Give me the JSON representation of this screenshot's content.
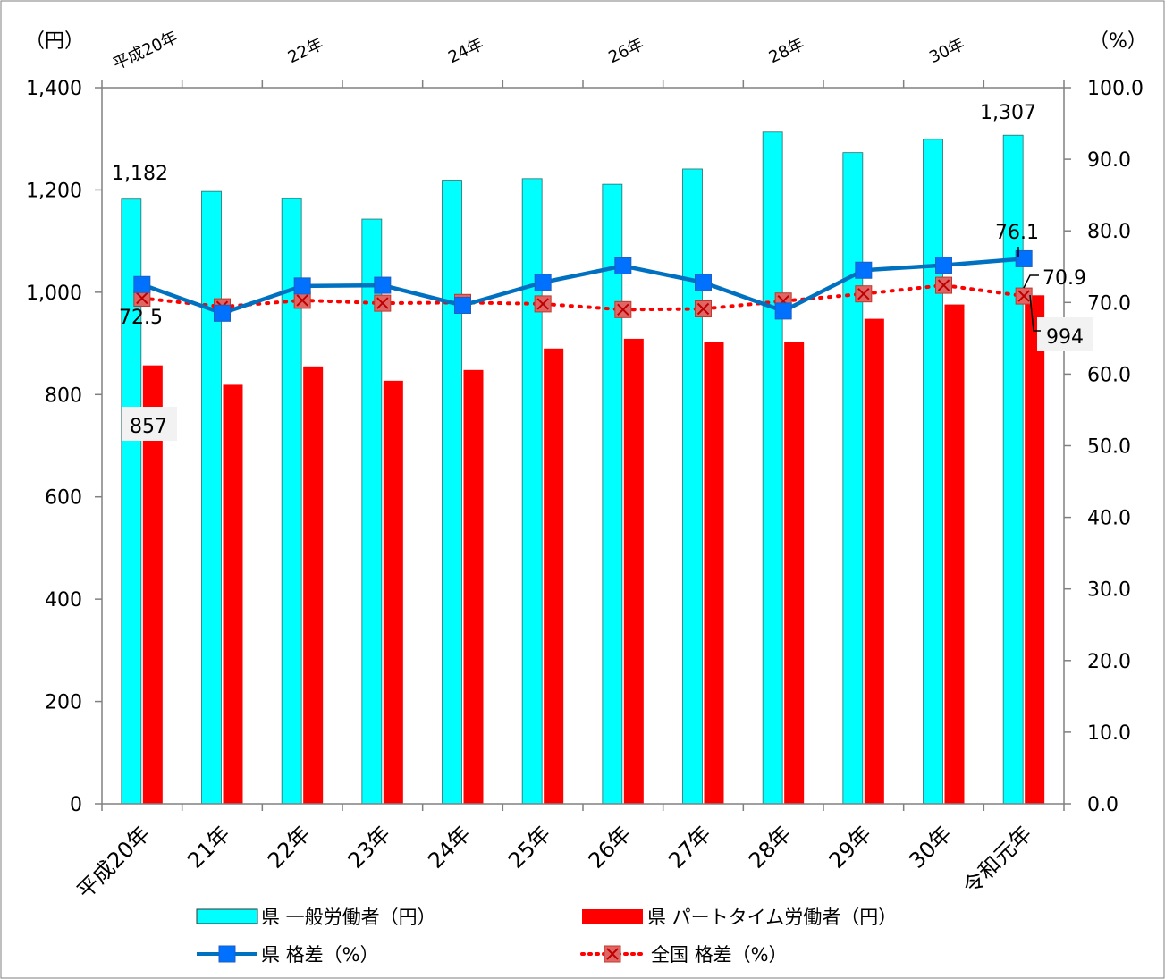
{
  "chart_data": {
    "type": "bar",
    "categories": [
      "平成20年",
      "21年",
      "22年",
      "23年",
      "24年",
      "25年",
      "26年",
      "27年",
      "28年",
      "29年",
      "30年",
      "令和元年"
    ],
    "top_labels": [
      "平成20年",
      "22年",
      "24年",
      "26年",
      "28年",
      "30年"
    ],
    "left_axis": {
      "unit": "（円）",
      "min": 0,
      "max": 1400,
      "step": 200,
      "ticks": [
        "0",
        "200",
        "400",
        "600",
        "800",
        "1,000",
        "1,200",
        "1,400"
      ]
    },
    "right_axis": {
      "unit": "（%）",
      "min": 0,
      "max": 100,
      "step": 10,
      "ticks": [
        "0.0",
        "10.0",
        "20.0",
        "30.0",
        "40.0",
        "50.0",
        "60.0",
        "70.0",
        "80.0",
        "90.0",
        "100.0"
      ]
    },
    "series": [
      {
        "name": "県 一般労働者（円）",
        "kind": "bar",
        "axis": "left",
        "color": "#00FFFF",
        "values": [
          1182,
          1197,
          1183,
          1143,
          1219,
          1222,
          1211,
          1241,
          1313,
          1273,
          1299,
          1307
        ]
      },
      {
        "name": "県 パートタイム労働者（円）",
        "kind": "bar",
        "axis": "left",
        "color": "#FF0000",
        "values": [
          857,
          819,
          855,
          827,
          848,
          890,
          909,
          903,
          902,
          948,
          976,
          994
        ]
      },
      {
        "name": "県 格差（%）",
        "kind": "line",
        "axis": "right",
        "color": "#0070C0",
        "values": [
          72.5,
          68.5,
          72.3,
          72.4,
          69.6,
          72.8,
          75.1,
          72.8,
          68.8,
          74.5,
          75.2,
          76.1
        ]
      },
      {
        "name": "全国 格差（%）",
        "kind": "line",
        "axis": "right",
        "color": "#FF0000",
        "style": "dotted",
        "values": [
          70.6,
          69.4,
          70.3,
          69.9,
          70.0,
          69.8,
          69.0,
          69.1,
          70.2,
          71.2,
          72.4,
          70.9
        ]
      }
    ],
    "data_labels": {
      "bar_general_first": "1,182",
      "bar_general_last": "1,307",
      "bar_part_first": "857",
      "bar_part_last": "994",
      "line_pref_first": "72.5",
      "line_pref_last": "76.1",
      "line_national_last": "70.9"
    },
    "legend": {
      "position": "bottom"
    },
    "grid": false
  }
}
